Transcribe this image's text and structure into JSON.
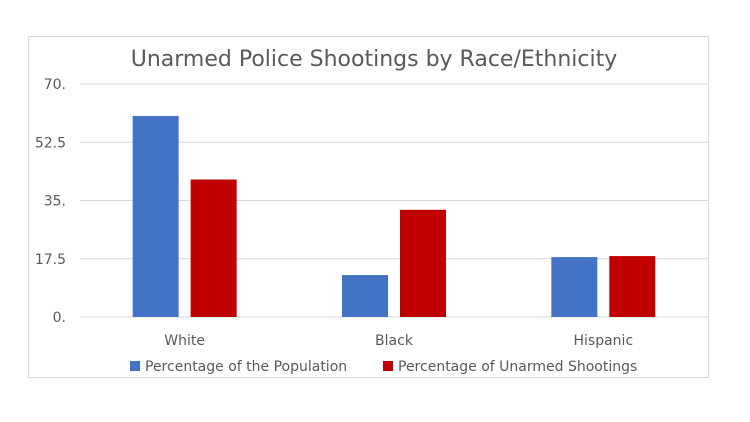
{
  "chart_data": {
    "type": "bar",
    "title": "Unarmed Police Shootings by Race/Ethnicity",
    "xlabel": "",
    "ylabel": "",
    "categories": [
      "White",
      "Black",
      "Hispanic"
    ],
    "y_tick_labels": [
      "0.",
      "17.5",
      "35.",
      "52.5",
      "70."
    ],
    "ylim": [
      0,
      70
    ],
    "grid": true,
    "legend_position": "bottom",
    "series": [
      {
        "name": "Percentage of the Population",
        "color": "#4472c4",
        "values": [
          60.4,
          12.6,
          18.0
        ]
      },
      {
        "name": "Percentage of Unarmed Shootings",
        "color": "#c00000",
        "values": [
          41.3,
          32.2,
          18.3
        ]
      }
    ]
  }
}
